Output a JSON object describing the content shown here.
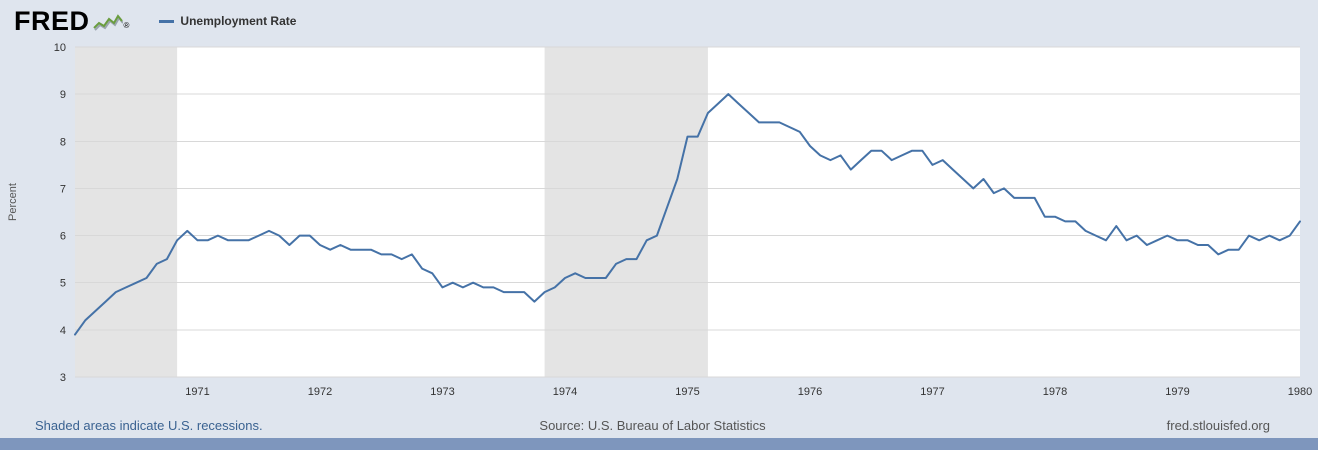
{
  "header": {
    "logo_text": "FRED",
    "logo_registered": "®",
    "legend_label": "Unemployment Rate"
  },
  "footer": {
    "recession_note": "Shaded areas indicate U.S. recessions.",
    "source": "Source: U.S. Bureau of Labor Statistics",
    "site": "fred.stlouisfed.org"
  },
  "colors": {
    "line": "#4572a7",
    "recession_band": "#e4e4e4",
    "gridline": "#d8d8d8",
    "background": "#dfe5ee",
    "plot_background": "#ffffff",
    "link": "#3a6291",
    "bottom_bar": "#7e96bd",
    "spark_green": "#6a9d3f",
    "spark_gray": "#9aa5ad"
  },
  "chart_data": {
    "type": "line",
    "title": "Unemployment Rate",
    "ylabel": "Percent",
    "xlabel": "",
    "frequency": "monthly",
    "x_start": {
      "year": 1970,
      "month": 1
    },
    "x_end": {
      "year": 1980,
      "month": 1
    },
    "x_tick_years": [
      1971,
      1972,
      1973,
      1974,
      1975,
      1976,
      1977,
      1978,
      1979,
      1980
    ],
    "y_ticks": [
      3,
      4,
      5,
      6,
      7,
      8,
      9,
      10
    ],
    "ylim": [
      3,
      10
    ],
    "grid": "horizontal-only",
    "legend_position": "top-left",
    "series": [
      {
        "name": "Unemployment Rate",
        "values": [
          3.9,
          4.2,
          4.4,
          4.6,
          4.8,
          4.9,
          5.0,
          5.1,
          5.4,
          5.5,
          5.9,
          6.1,
          5.9,
          5.9,
          6.0,
          5.9,
          5.9,
          5.9,
          6.0,
          6.1,
          6.0,
          5.8,
          6.0,
          6.0,
          5.8,
          5.7,
          5.8,
          5.7,
          5.7,
          5.7,
          5.6,
          5.6,
          5.5,
          5.6,
          5.3,
          5.2,
          4.9,
          5.0,
          4.9,
          5.0,
          4.9,
          4.9,
          4.8,
          4.8,
          4.8,
          4.6,
          4.8,
          4.9,
          5.1,
          5.2,
          5.1,
          5.1,
          5.1,
          5.4,
          5.5,
          5.5,
          5.9,
          6.0,
          6.6,
          7.2,
          8.1,
          8.1,
          8.6,
          8.8,
          9.0,
          8.8,
          8.6,
          8.4,
          8.4,
          8.4,
          8.3,
          8.2,
          7.9,
          7.7,
          7.6,
          7.7,
          7.4,
          7.6,
          7.8,
          7.8,
          7.6,
          7.7,
          7.8,
          7.8,
          7.5,
          7.6,
          7.4,
          7.2,
          7.0,
          7.2,
          6.9,
          7.0,
          6.8,
          6.8,
          6.8,
          6.4,
          6.4,
          6.3,
          6.3,
          6.1,
          6.0,
          5.9,
          6.2,
          5.9,
          6.0,
          5.8,
          5.9,
          6.0,
          5.9,
          5.9,
          5.8,
          5.8,
          5.6,
          5.7,
          5.7,
          6.0,
          5.9,
          6.0,
          5.9,
          6.0,
          6.3
        ]
      }
    ],
    "recessions": [
      {
        "start_index": 0,
        "end_index": 10
      },
      {
        "start_index": 46,
        "end_index": 62
      }
    ]
  }
}
